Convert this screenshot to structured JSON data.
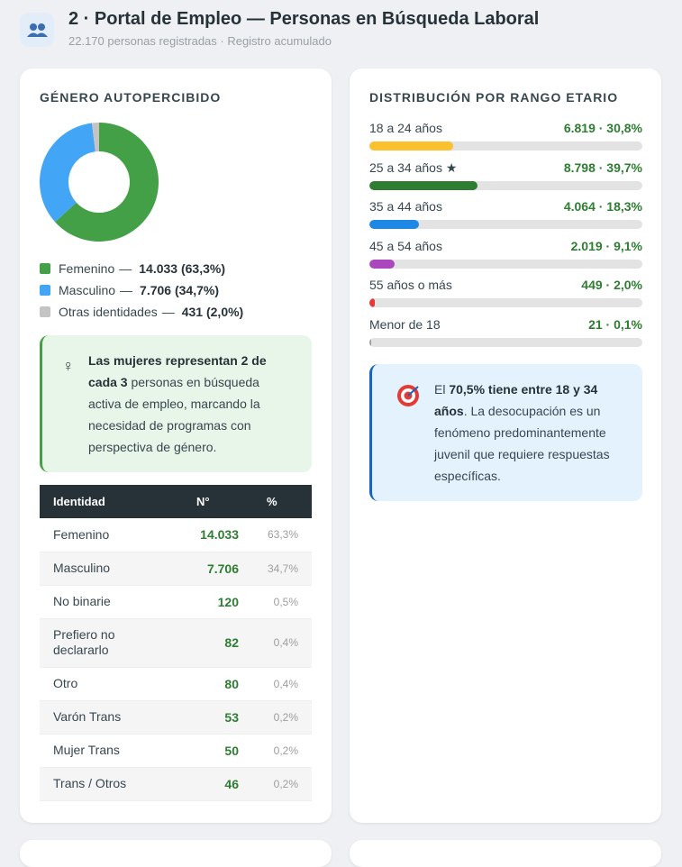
{
  "header": {
    "title": "2 · Portal de Empleo — Personas en Búsqueda Laboral",
    "subtitle": "22.170 personas registradas · Registro acumulado"
  },
  "chart_data": [
    {
      "type": "donut",
      "title": "GÉNERO AUTOPERCIBIDO",
      "categories": [
        "Femenino",
        "Masculino",
        "Otras identidades"
      ],
      "separator": "—",
      "values": [
        14033,
        7706,
        431
      ],
      "value_labels": [
        "14.033 (63,3%)",
        "7.706 (34,7%)",
        "431 (2,0%)"
      ],
      "colors": [
        "#43a047",
        "#42a5f5",
        "#c4c4c4"
      ]
    },
    {
      "type": "progress",
      "title": "DISTRIBUCIÓN POR RANGO ETARIO",
      "categories": [
        "18 a 24 años",
        "25 a 34 años ★",
        "35 a 44 años",
        "45 a 54 años",
        "55 años o más",
        "Menor de 18"
      ],
      "values": [
        30.8,
        39.7,
        18.3,
        9.1,
        2.0,
        0.1
      ],
      "value_labels": [
        "6.819 · 30,8%",
        "8.798 · 39,7%",
        "4.064 · 18,3%",
        "2.019 · 9,1%",
        "449 · 2,0%",
        "21 · 0,1%"
      ],
      "colors": [
        "#fbc02d",
        "#2e7d32",
        "#1e88e5",
        "#ab47bc",
        "#e53935",
        "#9e9e9e"
      ],
      "xlim": [
        0,
        100
      ]
    }
  ],
  "gender_note": {
    "icon": "♀",
    "parts": [
      {
        "text": "Las mujeres representan 2 de cada 3",
        "bold": true
      },
      {
        "text": " personas en búsqueda activa de empleo, marcando la necesidad de programas con perspectiva de género.",
        "bold": false
      }
    ]
  },
  "gender_table": {
    "columns": [
      "Identidad",
      "N°",
      "%"
    ],
    "rows": [
      [
        "Femenino",
        "14.033",
        "63,3%"
      ],
      [
        "Masculino",
        "7.706",
        "34,7%"
      ],
      [
        "No binarie",
        "120",
        "0,5%"
      ],
      [
        "Prefiero no declararlo",
        "82",
        "0,4%"
      ],
      [
        "Otro",
        "80",
        "0,4%"
      ],
      [
        "Varón Trans",
        "53",
        "0,2%"
      ],
      [
        "Mujer Trans",
        "50",
        "0,2%"
      ],
      [
        "Trans / Otros",
        "46",
        "0,2%"
      ]
    ]
  },
  "age_note": {
    "parts": [
      {
        "text": "El ",
        "bold": false
      },
      {
        "text": "70,5% tiene entre 18 y 34 años",
        "bold": true
      },
      {
        "text": ". La desocupación es un fenómeno predominantemente juvenil que requiere respuestas específicas.",
        "bold": false
      }
    ]
  }
}
